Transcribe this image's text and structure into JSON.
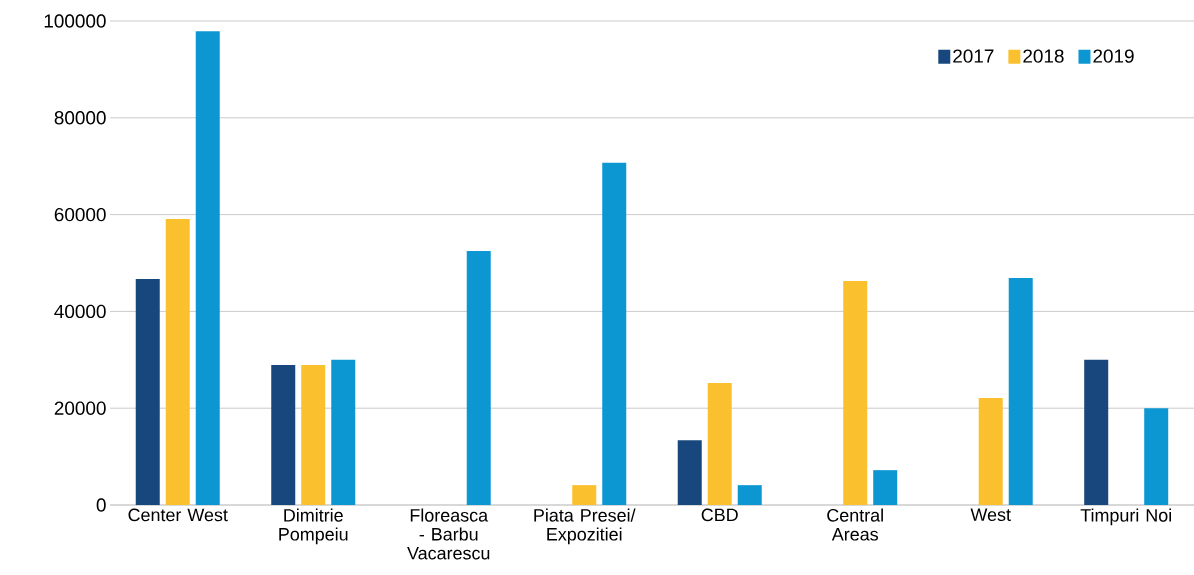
{
  "chart_data": {
    "type": "bar",
    "categories": [
      "Center West",
      "Dimitrie Pompeiu",
      "Floreasca - Barbu Vacarescu",
      "Piata Presei/ Expozitiei",
      "CBD",
      "Central Areas",
      "West",
      "Timpuri Noi"
    ],
    "series": [
      {
        "name": "2017",
        "color": "#17477c",
        "values": [
          46700,
          28900,
          null,
          null,
          13400,
          null,
          null,
          30000
        ]
      },
      {
        "name": "2018",
        "color": "#fbc02d",
        "values": [
          59100,
          28900,
          null,
          4100,
          25200,
          46300,
          22100,
          null
        ]
      },
      {
        "name": "2019",
        "color": "#0c97d3",
        "values": [
          97900,
          30000,
          52500,
          70700,
          4100,
          7200,
          46900,
          20000
        ]
      }
    ],
    "ylim": [
      0,
      100000
    ],
    "yticks": [
      0,
      20000,
      40000,
      60000,
      80000,
      100000
    ],
    "grid": "y",
    "legend": "top right"
  }
}
